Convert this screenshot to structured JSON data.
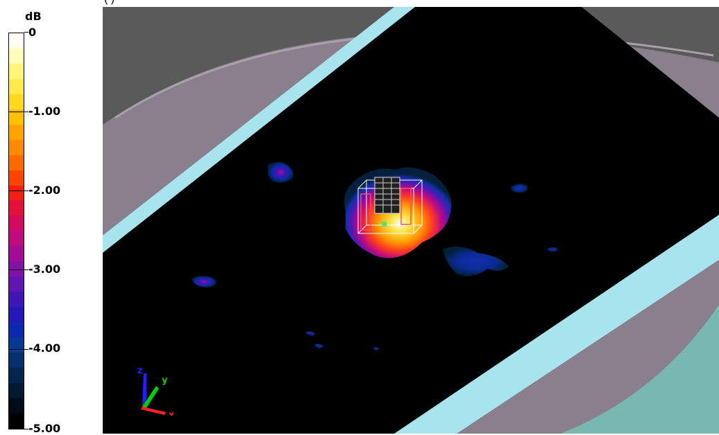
{
  "caption": {
    "text": "(                  )"
  },
  "legend": {
    "unit": "dB",
    "ticks": [
      "0",
      "-1.00",
      "-2.00",
      "-3.00",
      "-4.00",
      "-5.00"
    ],
    "colors": [
      "#fffff0",
      "#fffcb8",
      "#fff578",
      "#ffea48",
      "#ffd820",
      "#ffc000",
      "#ffa400",
      "#ff8a00",
      "#ff6a00",
      "#ff4400",
      "#f51f10",
      "#e6103a",
      "#d40a60",
      "#c00a80",
      "#a40c98",
      "#8212a8",
      "#6116b2",
      "#3f16b8",
      "#2416b8",
      "#0c28b0",
      "#063a94",
      "#043070",
      "#032650",
      "#021833",
      "#010b18",
      "#000000"
    ]
  },
  "axis_triad": {
    "z": "z",
    "y": "y",
    "x": "x",
    "colors": {
      "z": "#2020ff",
      "y": "#00cc00",
      "x": "#ff2020"
    }
  },
  "scene": {
    "plane_color": "#000000",
    "rim_color": "#a8e4ee",
    "phantom_color": "#8a7f8c",
    "liquid_color": "#79b8b0"
  }
}
